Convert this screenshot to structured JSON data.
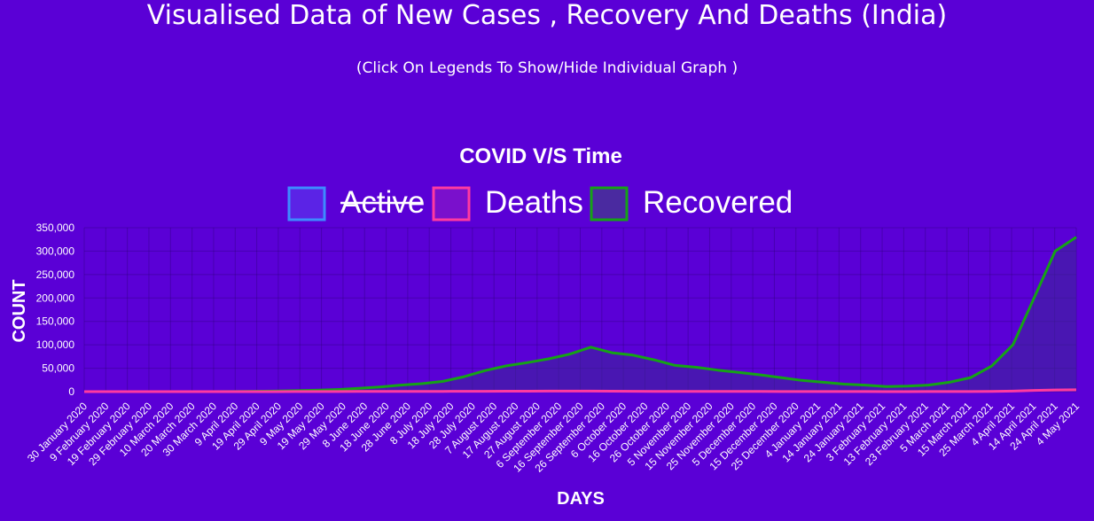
{
  "page": {
    "title": "Visualised Data of New Cases , Recovery And Deaths (India)",
    "subtitle": "(Click On Legends To Show/Hide Individual Graph )"
  },
  "chart_data": {
    "type": "area",
    "title": "COVID V/S Time",
    "xlabel": "DAYS",
    "ylabel": "COUNT",
    "ylim": [
      0,
      350000
    ],
    "yticks": [
      0,
      50000,
      100000,
      150000,
      200000,
      250000,
      300000,
      350000
    ],
    "ytick_labels": [
      "0",
      "50,000",
      "100,000",
      "150,000",
      "200,000",
      "250,000",
      "300,000",
      "350,000"
    ],
    "grid": true,
    "legend_position": "top-center",
    "x_tick_labels": [
      "30 January 2020",
      "9 February 2020",
      "19 February 2020",
      "29 February 2020",
      "10 March 2020",
      "20 March 2020",
      "30 March 2020",
      "9 April 2020",
      "19 April 2020",
      "29 April 2020",
      "9 May 2020",
      "19 May 2020",
      "29 May 2020",
      "8 June 2020",
      "18 June 2020",
      "28 June 2020",
      "8 July 2020",
      "18 July 2020",
      "28 July 2020",
      "7 August 2020",
      "17 August 2020",
      "27 August 2020",
      "6 September 2020",
      "16 September 2020",
      "26 September 2020",
      "6 October 2020",
      "16 October 2020",
      "26 October 2020",
      "5 November 2020",
      "15 November 2020",
      "25 November 2020",
      "5 December 2020",
      "15 December 2020",
      "25 December 2020",
      "4 January 2021",
      "14 January 2021",
      "24 January 2021",
      "3 February 2021",
      "13 February 2021",
      "23 February 2021",
      "5 March 2021",
      "15 March 2021",
      "25 March 2021",
      "4 April 2021",
      "14 April 2021",
      "24 April 2021",
      "4 May 2021"
    ],
    "series": [
      {
        "name": "Active",
        "hidden": true,
        "color": "#3d8bff",
        "values": []
      },
      {
        "name": "Deaths",
        "hidden": false,
        "color": "#ff3aa0",
        "values": [
          0,
          0,
          0,
          0,
          0,
          2,
          10,
          40,
          45,
          70,
          120,
          130,
          200,
          300,
          380,
          430,
          480,
          600,
          700,
          800,
          900,
          950,
          1050,
          1150,
          1100,
          1000,
          700,
          550,
          500,
          520,
          490,
          400,
          340,
          260,
          220,
          160,
          130,
          100,
          90,
          80,
          110,
          150,
          260,
          520,
          1100,
          2600,
          3600,
          3900
        ]
      },
      {
        "name": "Recovered",
        "hidden": false,
        "color": "#16a316",
        "values": [
          0,
          0,
          0,
          0,
          0,
          0,
          10,
          200,
          700,
          1200,
          2000,
          3000,
          4500,
          7000,
          10000,
          14000,
          17000,
          22000,
          32000,
          45000,
          55000,
          62000,
          70000,
          80000,
          95000,
          83000,
          78000,
          68000,
          56000,
          52000,
          46000,
          41000,
          36000,
          30000,
          24000,
          20000,
          16000,
          14000,
          11000,
          12000,
          14000,
          20000,
          30000,
          55000,
          100000,
          200000,
          300000,
          330000
        ]
      }
    ]
  }
}
